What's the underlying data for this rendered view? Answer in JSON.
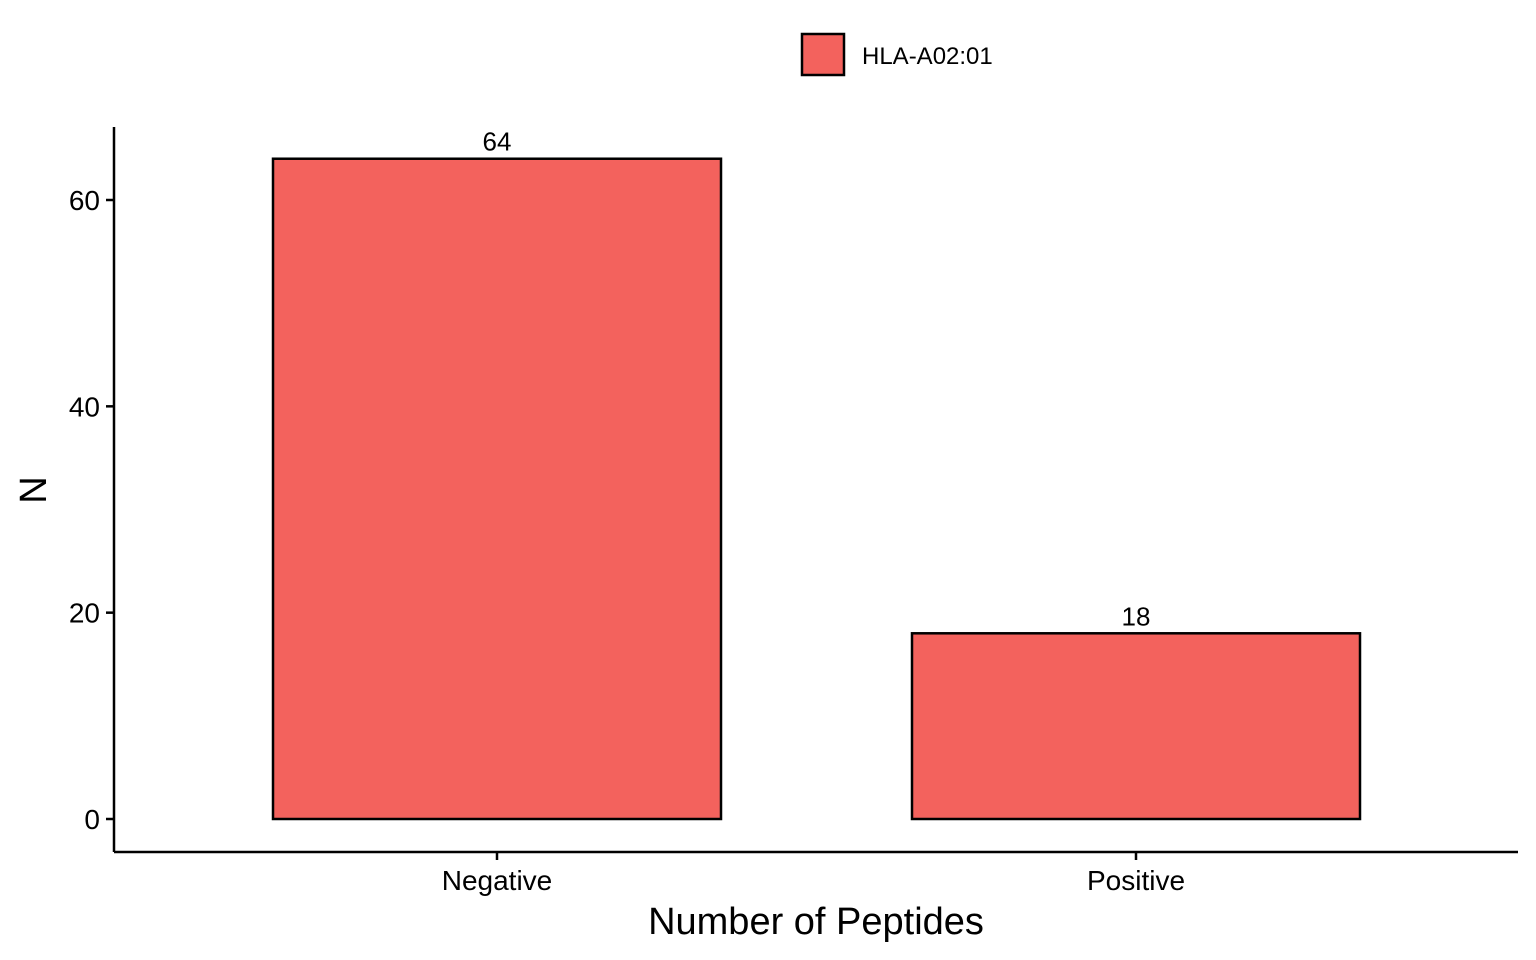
{
  "chart_data": {
    "type": "bar",
    "categories": [
      "Negative",
      "Positive"
    ],
    "series": [
      {
        "name": "HLA-A02:01",
        "values": [
          64,
          18
        ],
        "color": "#F3625D"
      }
    ],
    "data_labels": [
      "64",
      "18"
    ],
    "xlabel": "Number of Peptides",
    "ylabel": "N",
    "ylim": [
      0,
      67
    ],
    "yticks": [
      0,
      20,
      40,
      60
    ],
    "ytick_labels": [
      "0",
      "20",
      "40",
      "60"
    ],
    "grid": false,
    "legend_position": "top"
  }
}
